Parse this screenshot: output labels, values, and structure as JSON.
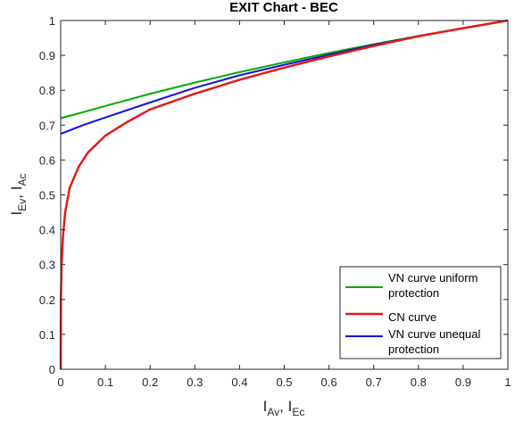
{
  "chart_data": {
    "type": "line",
    "title": "EXIT Chart - BEC",
    "xlabel": {
      "main1": "I",
      "sub1": "Av",
      "sep": ", ",
      "main2": "I",
      "sub2": "Ec"
    },
    "ylabel": {
      "main1": "I",
      "sub1": "Ev",
      "sep": ", ",
      "main2": "I",
      "sub2": "Ac"
    },
    "xlim": [
      0,
      1
    ],
    "ylim": [
      0,
      1
    ],
    "xticks": [
      "0",
      "0.1",
      "0.2",
      "0.3",
      "0.4",
      "0.5",
      "0.6",
      "0.7",
      "0.8",
      "0.9",
      "1"
    ],
    "yticks": [
      "0",
      "0.1",
      "0.2",
      "0.3",
      "0.4",
      "0.5",
      "0.6",
      "0.7",
      "0.8",
      "0.9",
      "1"
    ],
    "grid": false,
    "legend_position": "bottom-right",
    "series": [
      {
        "name": "VN curve uniform protection",
        "legend_lines": [
          "VN curve uniform",
          "protection"
        ],
        "color": "#00aa00",
        "x": [
          0,
          0.05,
          0.1,
          0.2,
          0.3,
          0.4,
          0.5,
          0.6,
          0.7,
          0.8,
          0.9,
          1.0
        ],
        "y": [
          0.72,
          0.737,
          0.755,
          0.79,
          0.822,
          0.852,
          0.88,
          0.907,
          0.932,
          0.956,
          0.978,
          1.0
        ]
      },
      {
        "name": "CN curve",
        "legend_lines": [
          "CN curve"
        ],
        "color": "#e41a1a",
        "x": [
          0,
          0.0005,
          0.002,
          0.005,
          0.01,
          0.02,
          0.04,
          0.06,
          0.1,
          0.15,
          0.2,
          0.3,
          0.4,
          0.5,
          0.6,
          0.7,
          0.8,
          0.9,
          1.0
        ],
        "y": [
          0,
          0.2,
          0.3,
          0.38,
          0.45,
          0.52,
          0.58,
          0.62,
          0.67,
          0.71,
          0.745,
          0.79,
          0.83,
          0.865,
          0.897,
          0.927,
          0.955,
          0.978,
          1.0
        ]
      },
      {
        "name": "VN curve unequal protection",
        "legend_lines": [
          "VN curve unequal",
          "protection"
        ],
        "color": "#1010e0",
        "x": [
          0,
          0.05,
          0.1,
          0.2,
          0.3,
          0.4,
          0.5,
          0.6,
          0.7,
          0.8,
          0.9,
          1.0
        ],
        "y": [
          0.675,
          0.7,
          0.722,
          0.765,
          0.807,
          0.843,
          0.873,
          0.902,
          0.93,
          0.955,
          0.978,
          1.0
        ]
      }
    ]
  }
}
